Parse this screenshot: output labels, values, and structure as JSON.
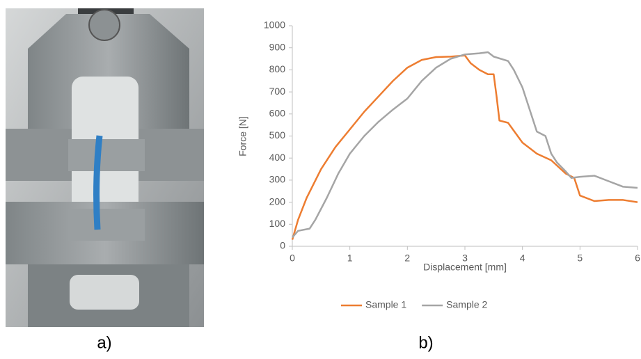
{
  "panel_labels": [
    "a)",
    "b)"
  ],
  "chart_data": {
    "type": "line",
    "xlabel": "Displacement [mm]",
    "ylabel": "Force [N]",
    "xlim": [
      0,
      6
    ],
    "xticks": [
      0,
      1,
      2,
      3,
      4,
      5,
      6
    ],
    "ylim": [
      0,
      1000
    ],
    "yticks": [
      0,
      100,
      200,
      300,
      400,
      500,
      600,
      700,
      800,
      900,
      1000
    ],
    "grid": false,
    "legend": "bottom",
    "series": [
      {
        "name": "Sample 1",
        "color": "#ed7d31",
        "x": [
          0,
          0.1,
          0.25,
          0.5,
          0.75,
          1,
          1.25,
          1.5,
          1.75,
          2,
          2.25,
          2.5,
          2.75,
          3,
          3.1,
          3.25,
          3.4,
          3.5,
          3.55,
          3.6,
          3.75,
          4,
          4.25,
          4.5,
          4.75,
          4.9,
          5,
          5.25,
          5.5,
          5.75,
          6
        ],
        "values": [
          30,
          120,
          220,
          350,
          450,
          530,
          610,
          680,
          750,
          810,
          845,
          858,
          860,
          865,
          830,
          800,
          780,
          780,
          680,
          570,
          560,
          470,
          420,
          390,
          330,
          310,
          230,
          205,
          210,
          210,
          200
        ]
      },
      {
        "name": "Sample 2",
        "color": "#a5a5a5",
        "x": [
          0,
          0.1,
          0.3,
          0.4,
          0.6,
          0.8,
          1,
          1.25,
          1.5,
          1.75,
          2,
          2.25,
          2.5,
          2.75,
          3,
          3.25,
          3.4,
          3.5,
          3.75,
          3.85,
          4,
          4.15,
          4.25,
          4.4,
          4.5,
          4.6,
          4.75,
          4.85,
          5,
          5.25,
          5.5,
          5.75,
          6
        ],
        "values": [
          40,
          70,
          80,
          120,
          220,
          330,
          420,
          500,
          565,
          620,
          670,
          750,
          810,
          850,
          870,
          875,
          880,
          860,
          840,
          800,
          720,
          600,
          520,
          500,
          420,
          380,
          340,
          310,
          315,
          320,
          295,
          270,
          265
        ]
      }
    ]
  }
}
